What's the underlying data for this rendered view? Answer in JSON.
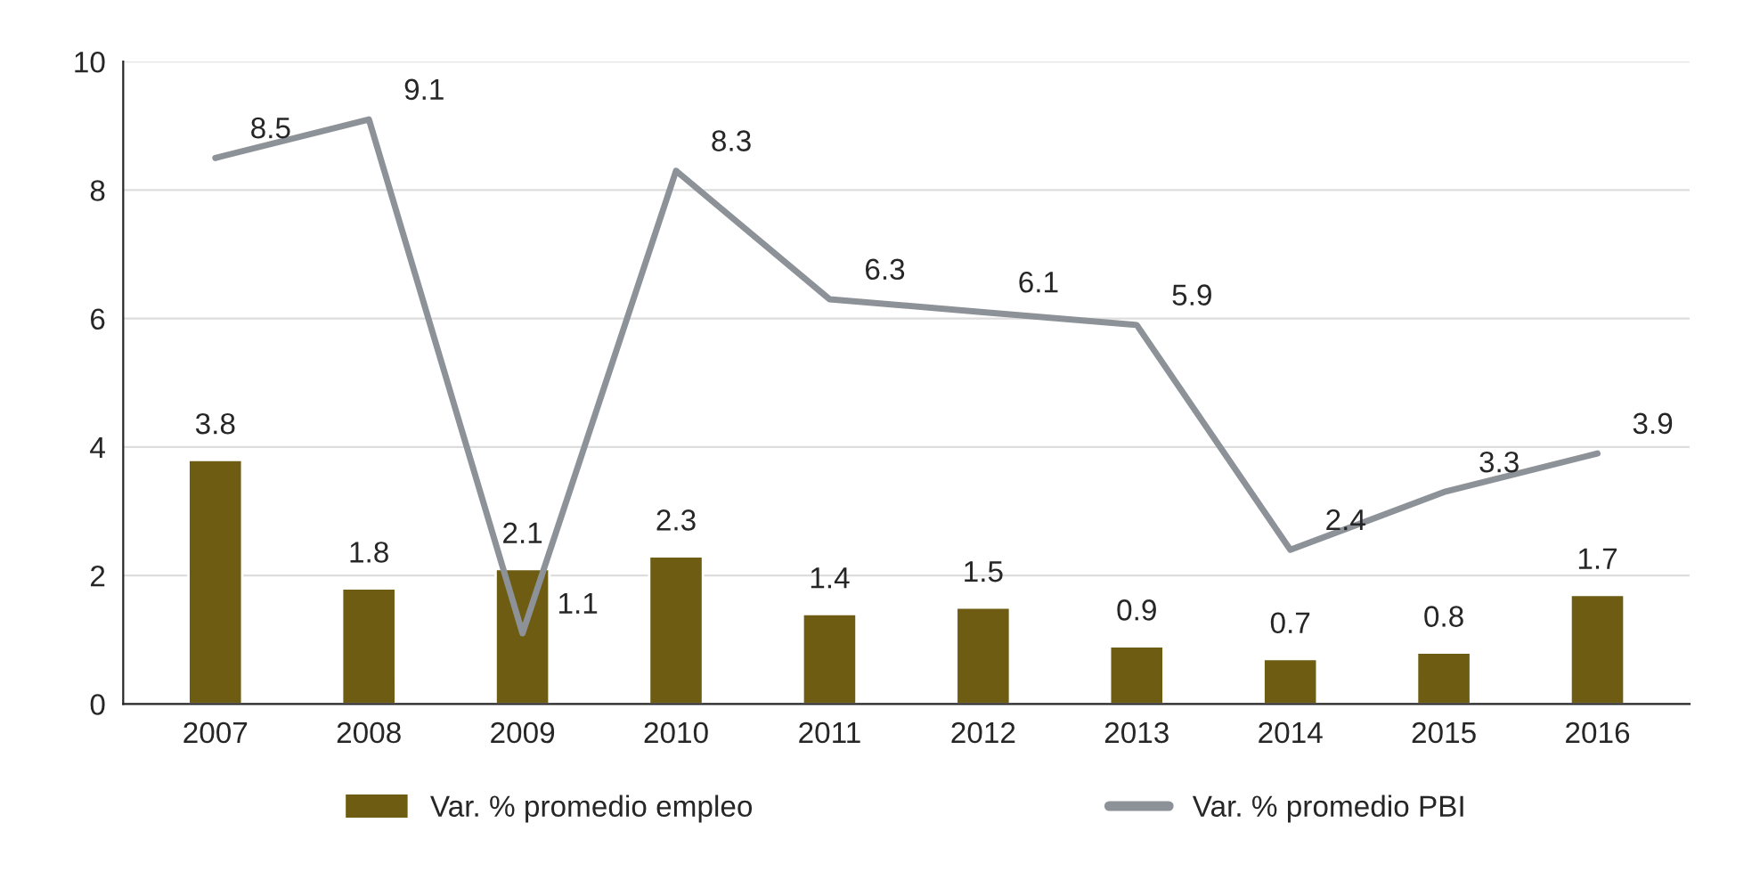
{
  "chart_data": {
    "type": "bar",
    "categories": [
      "2007",
      "2008",
      "2009",
      "2010",
      "2011",
      "2012",
      "2013",
      "2014",
      "2015",
      "2016"
    ],
    "series": [
      {
        "name": "Var. % promedio empleo",
        "color": "#6e5c12",
        "values": [
          3.8,
          1.8,
          2.1,
          2.3,
          1.4,
          1.5,
          0.9,
          0.7,
          0.8,
          1.7
        ]
      },
      {
        "name": "Var. % promedio PBI",
        "type": "line",
        "color": "#8c9298",
        "values": [
          8.5,
          9.1,
          1.1,
          8.3,
          6.3,
          6.1,
          5.9,
          2.4,
          3.3,
          3.9
        ]
      }
    ],
    "ylim": [
      0,
      10
    ],
    "yticks": [
      0,
      2,
      4,
      6,
      8,
      10
    ],
    "grid": "y",
    "legend": "bottom",
    "data_labels": true
  }
}
